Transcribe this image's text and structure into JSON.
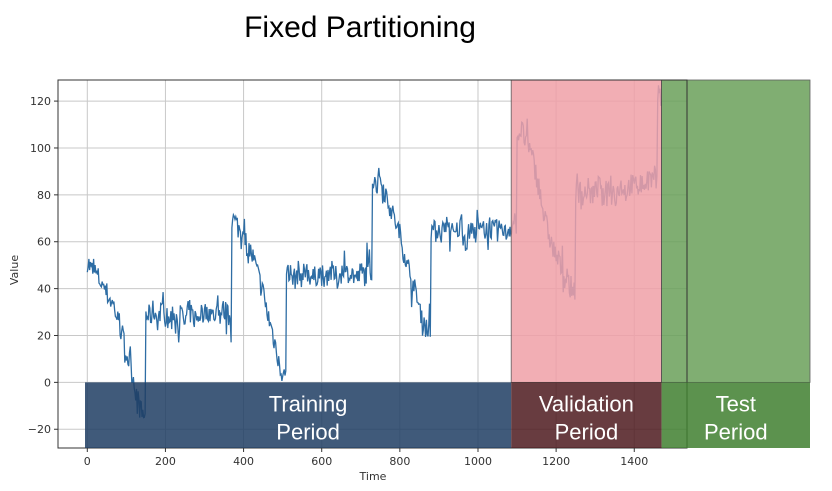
{
  "chart_data": {
    "type": "line",
    "title": "Fixed Partitioning",
    "xlabel": "Time",
    "ylabel": "Value",
    "xlim": [
      -75,
      1535
    ],
    "ylim": [
      -28,
      129
    ],
    "grid": true,
    "x_ticks": [
      0,
      200,
      400,
      600,
      800,
      1000,
      1200,
      1400
    ],
    "y_ticks": [
      -20,
      0,
      20,
      40,
      60,
      80,
      100,
      120
    ],
    "series_color": "#2e6da4",
    "series": [
      {
        "x_step": 10,
        "values": [
          52,
          48,
          47,
          44,
          42,
          38,
          35,
          32,
          25,
          20,
          12,
          8,
          0,
          -8,
          -14,
          29,
          28,
          31,
          27,
          30,
          28,
          26,
          30,
          27,
          29,
          25,
          31,
          28,
          27,
          30,
          29,
          31,
          28,
          30,
          29,
          31,
          28,
          70,
          68,
          65,
          62,
          58,
          55,
          50,
          44,
          38,
          30,
          24,
          17,
          10,
          3,
          45,
          46,
          44,
          47,
          45,
          48,
          46,
          44,
          47,
          46,
          45,
          48,
          46,
          44,
          47,
          45,
          48,
          46,
          44,
          47,
          46,
          48,
          86,
          85,
          88,
          82,
          78,
          72,
          68,
          63,
          56,
          50,
          44,
          38,
          32,
          27,
          22,
          66,
          64,
          66,
          63,
          67,
          65,
          62,
          66,
          64,
          60,
          65,
          63,
          66,
          64,
          65,
          67,
          64,
          65,
          66,
          63,
          66,
          68,
          105,
          108,
          104,
          100,
          95,
          88,
          80,
          70,
          64,
          58,
          54,
          50,
          46,
          42,
          40,
          80,
          82,
          79,
          83,
          80,
          81,
          84,
          78,
          82,
          85,
          80,
          83,
          84,
          81,
          85,
          83,
          86,
          84,
          85,
          87,
          86,
          122
        ]
      }
    ],
    "periods": [
      {
        "label_line1": "Training",
        "label_line2": "Period",
        "start": 0,
        "end": 1085,
        "band_color": "#1f3d63",
        "region_color": null
      },
      {
        "label_line1": "Validation",
        "label_line2": "Period",
        "start": 1085,
        "end": 1470,
        "band_color": "#4d1a1f",
        "region_color": "#f0a0a8"
      },
      {
        "label_line1": "Test",
        "label_line2": "Period",
        "start": 1470,
        "end": 1855,
        "band_color": "#3f7f2f",
        "region_color": "#6aa15a"
      }
    ]
  }
}
